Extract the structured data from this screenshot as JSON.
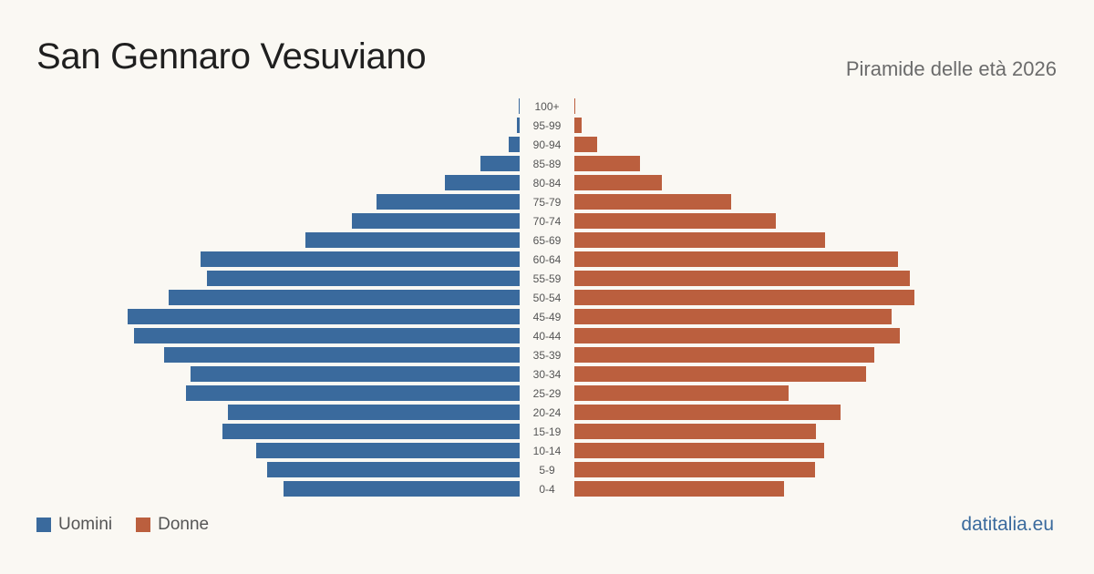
{
  "header": {
    "title": "San Gennaro Vesuviano",
    "subtitle": "Piramide delle età 2026"
  },
  "legend": {
    "men_label": "Uomini",
    "women_label": "Donne"
  },
  "brand": "datitalia.eu",
  "colors": {
    "men": "#3a6a9d",
    "women": "#bb5f3e",
    "brand": "#3a6a9d"
  },
  "chart_data": {
    "type": "bar",
    "orientation": "horizontal-pyramid",
    "categories": [
      "100+",
      "95-99",
      "90-94",
      "85-89",
      "80-84",
      "75-79",
      "70-74",
      "65-69",
      "60-64",
      "55-59",
      "50-54",
      "45-49",
      "40-44",
      "35-39",
      "30-34",
      "25-29",
      "20-24",
      "15-19",
      "10-14",
      "5-9",
      "0-4"
    ],
    "series": [
      {
        "name": "Uomini",
        "values": [
          1,
          3,
          12,
          43,
          82,
          157,
          184,
          235,
          350,
          343,
          385,
          430,
          423,
          390,
          361,
          366,
          320,
          326,
          289,
          277,
          259
        ]
      },
      {
        "name": "Donne",
        "values": [
          1,
          8,
          25,
          72,
          96,
          172,
          221,
          275,
          355,
          368,
          373,
          348,
          357,
          329,
          320,
          235,
          292,
          265,
          274,
          264,
          230
        ]
      }
    ],
    "xlim": [
      0,
      430
    ]
  }
}
